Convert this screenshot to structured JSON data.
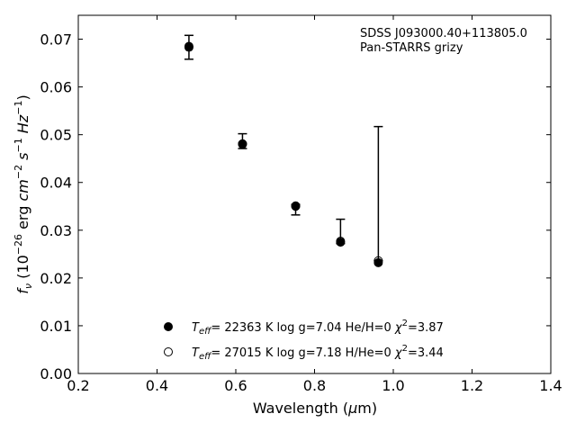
{
  "chart_data": {
    "type": "scatter",
    "xlabel_parts": [
      "Wavelength (",
      "μ",
      "m)"
    ],
    "ylabel_parts": {
      "f": "f",
      "nu": "ν",
      "open": " (10",
      "exp1": "−26",
      "mid": " erg ",
      "cm": "cm",
      "exp2": "−2",
      "s": " s",
      "exp3": "−1",
      "hz": " Hz",
      "exp4": "−1",
      "close": ")"
    },
    "xlim": [
      0.2,
      1.4
    ],
    "ylim": [
      0.0,
      0.075
    ],
    "x_ticks": [
      0.2,
      0.4,
      0.6,
      0.8,
      1.0,
      1.2,
      1.4
    ],
    "x_tick_labels": [
      "0.2",
      "0.4",
      "0.6",
      "0.8",
      "1.0",
      "1.2",
      "1.4"
    ],
    "y_ticks": [
      0.0,
      0.01,
      0.02,
      0.03,
      0.04,
      0.05,
      0.06,
      0.07
    ],
    "y_tick_labels": [
      "0.00",
      "0.01",
      "0.02",
      "0.03",
      "0.04",
      "0.05",
      "0.06",
      "0.07"
    ],
    "annotation": [
      "SDSS J093000.40+113805.0",
      "Pan-STARRS grizy"
    ],
    "observed": {
      "x": [
        0.481,
        0.617,
        0.752,
        0.866,
        0.962
      ],
      "y": [
        0.0683,
        0.048,
        0.035,
        0.0277,
        0.0238
      ],
      "yerr_low": [
        0.0025,
        0.0009,
        0.0018,
        0.0005,
        0.0002
      ],
      "yerr_high": [
        0.0025,
        0.0022,
        0.0004,
        0.0046,
        0.0279
      ]
    },
    "series": [
      {
        "marker": "filled",
        "legend": {
          "T": "T",
          "sub": "eff",
          "main": "= 22363 K  log g=7.04  He/H=0  ",
          "chi": "χ",
          "sup": "2",
          "end": "=3.87"
        },
        "x": [
          0.481,
          0.617,
          0.752,
          0.866,
          0.962
        ],
        "y": [
          0.0685,
          0.048,
          0.035,
          0.0275,
          0.0232
        ]
      },
      {
        "marker": "open",
        "legend": {
          "T": "T",
          "sub": "eff",
          "main": "= 27015 K  log g=7.18  H/He=0  ",
          "chi": "χ",
          "sup": "2",
          "end": "=3.44"
        },
        "x": [
          0.481,
          0.617,
          0.752,
          0.866,
          0.962
        ],
        "y": [
          0.0683,
          0.0481,
          0.0351,
          0.0277,
          0.0236
        ]
      }
    ],
    "grid": false,
    "legend_position": "lower-center"
  }
}
